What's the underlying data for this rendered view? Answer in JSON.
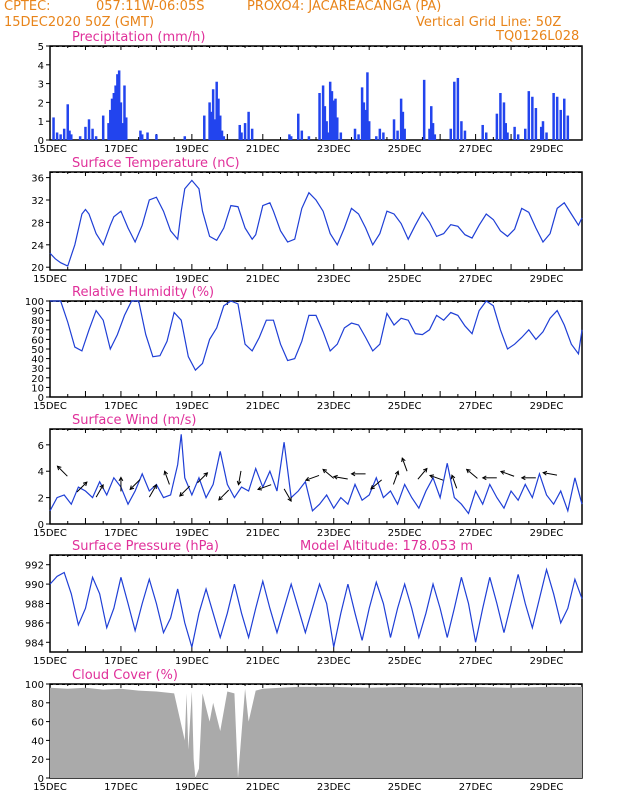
{
  "header": {
    "org": "CPTEC:",
    "coords": "057:11W-06:05S",
    "station": "PROXO4: JACAREACANGA (PA)",
    "datetime": "15DEC2020 50Z (GMT)",
    "grid_note": "Vertical Grid Line: 50Z",
    "model_code": "TQ0126L028"
  },
  "colors": {
    "header_text": "#e8841a",
    "title_text": "#e0309a",
    "line": "#1f3fd6",
    "bar": "#2244ee",
    "cloud": "#aaaaaa",
    "wind_arrow": "#000000"
  },
  "x_axis": {
    "labels": [
      "15DEC",
      "17DEC",
      "19DEC",
      "21DEC",
      "23DEC",
      "25DEC",
      "27DEC",
      "29DEC"
    ],
    "start_label": "15DEC",
    "days": 15
  },
  "chart_data": [
    {
      "type": "bar",
      "title": "Precipitation (mm/h)",
      "ylim": [
        0,
        5
      ],
      "yticks": [
        0,
        1,
        2,
        3,
        4,
        5
      ],
      "x_day_offsets": [
        0.1,
        0.2,
        0.3,
        0.4,
        0.5,
        0.55,
        0.6,
        0.85,
        1.0,
        1.1,
        1.2,
        1.3,
        1.5,
        1.65,
        1.7,
        1.75,
        1.8,
        1.85,
        1.9,
        1.95,
        2.0,
        2.05,
        2.1,
        2.15,
        2.55,
        2.6,
        2.75,
        3.0,
        3.8,
        4.35,
        4.5,
        4.55,
        4.6,
        4.65,
        4.7,
        4.75,
        4.8,
        4.85,
        4.9,
        5.35,
        5.4,
        5.5,
        5.6,
        5.7,
        6.75,
        6.8,
        7.0,
        7.1,
        7.3,
        7.6,
        7.7,
        7.75,
        7.8,
        7.85,
        7.9,
        7.95,
        8.0,
        8.05,
        8.1,
        8.2,
        8.6,
        8.7,
        8.8,
        8.85,
        8.9,
        8.95,
        9.0,
        9.2,
        9.3,
        9.4,
        9.7,
        9.8,
        9.9,
        9.95,
        10.0,
        10.55,
        10.7,
        10.75,
        10.8,
        10.85,
        11.3,
        11.4,
        11.5,
        11.6,
        11.7,
        12.2,
        12.3,
        12.6,
        12.7,
        12.8,
        12.85,
        12.9,
        13.1,
        13.2,
        13.4,
        13.5,
        13.6,
        13.7,
        13.85,
        13.9,
        14.0,
        14.2,
        14.3,
        14.4,
        14.5,
        14.6
      ],
      "values": [
        1.2,
        0.4,
        0.3,
        0.6,
        1.9,
        0.5,
        0.3,
        0.2,
        0.7,
        1.1,
        0.6,
        0.2,
        1.3,
        0.9,
        1.6,
        2.2,
        2.5,
        2.9,
        3.5,
        3.7,
        2.0,
        0.9,
        2.9,
        1.2,
        0.5,
        0.3,
        0.4,
        0.3,
        0.2,
        1.3,
        2.0,
        1.5,
        2.7,
        1.1,
        3.1,
        2.2,
        1.3,
        0.5,
        0.2,
        0.8,
        0.4,
        0.9,
        1.5,
        0.6,
        0.3,
        0.2,
        1.4,
        0.5,
        0.2,
        2.5,
        2.9,
        1.8,
        1.0,
        0.4,
        3.1,
        2.6,
        2.1,
        2.2,
        1.2,
        0.4,
        0.6,
        0.3,
        2.8,
        2.0,
        1.6,
        3.6,
        1.0,
        0.2,
        0.6,
        0.4,
        1.1,
        0.5,
        2.2,
        1.5,
        0.6,
        3.2,
        0.6,
        1.8,
        0.9,
        0.3,
        0.6,
        3.1,
        3.3,
        1.0,
        0.5,
        0.8,
        0.4,
        1.4,
        2.5,
        2.0,
        0.9,
        0.4,
        0.7,
        0.3,
        0.6,
        2.6,
        2.3,
        1.7,
        0.7,
        1.0,
        0.4,
        2.5,
        2.3,
        1.6,
        2.2,
        1.3
      ]
    },
    {
      "type": "line",
      "title": "Surface Temperature (nC)",
      "ylim": [
        19.5,
        37
      ],
      "yticks": [
        20,
        24,
        28,
        32,
        36
      ],
      "x_day_offsets": [
        0.0,
        0.15,
        0.3,
        0.5,
        0.7,
        0.9,
        1.0,
        1.1,
        1.3,
        1.5,
        1.7,
        1.8,
        2.0,
        2.2,
        2.4,
        2.6,
        2.8,
        3.0,
        3.2,
        3.4,
        3.6,
        3.7,
        3.8,
        4.0,
        4.2,
        4.3,
        4.5,
        4.7,
        4.9,
        5.1,
        5.3,
        5.5,
        5.7,
        5.8,
        6.0,
        6.2,
        6.3,
        6.5,
        6.7,
        6.9,
        7.1,
        7.3,
        7.5,
        7.7,
        7.9,
        8.1,
        8.3,
        8.5,
        8.7,
        8.9,
        9.1,
        9.3,
        9.5,
        9.7,
        9.9,
        10.1,
        10.3,
        10.5,
        10.7,
        10.9,
        11.1,
        11.3,
        11.5,
        11.7,
        11.9,
        12.1,
        12.3,
        12.5,
        12.7,
        12.9,
        13.1,
        13.3,
        13.5,
        13.7,
        13.9,
        14.1,
        14.3,
        14.5,
        14.7,
        14.9,
        15.0
      ],
      "values": [
        22.5,
        21.5,
        20.8,
        20.2,
        24.0,
        29.5,
        30.3,
        29.5,
        26.0,
        24.0,
        27.5,
        29.0,
        30.0,
        27.0,
        24.5,
        27.5,
        32.0,
        32.5,
        30.0,
        26.5,
        25.0,
        30.0,
        34.0,
        35.5,
        34.0,
        30.0,
        25.5,
        24.8,
        27.0,
        31.0,
        30.8,
        27.0,
        25.0,
        25.8,
        31.0,
        31.5,
        30.0,
        26.5,
        24.5,
        25.0,
        30.5,
        33.3,
        32.0,
        30.0,
        26.0,
        24.0,
        27.0,
        30.5,
        29.5,
        27.0,
        24.0,
        26.0,
        30.0,
        29.5,
        27.8,
        25.0,
        27.5,
        29.8,
        28.0,
        25.5,
        26.0,
        27.6,
        27.3,
        25.8,
        25.2,
        27.5,
        29.5,
        28.5,
        26.5,
        25.5,
        26.8,
        30.5,
        29.8,
        27.0,
        24.5,
        26.0,
        30.5,
        31.5,
        29.5,
        27.5,
        28.8
      ]
    },
    {
      "type": "line",
      "title": "Relative Humidity (%)",
      "ylim": [
        0,
        100
      ],
      "yticks": [
        0,
        10,
        20,
        30,
        40,
        50,
        60,
        70,
        80,
        90,
        100
      ],
      "x_day_offsets": [
        0.0,
        0.3,
        0.5,
        0.7,
        0.9,
        1.1,
        1.3,
        1.5,
        1.7,
        1.9,
        2.1,
        2.3,
        2.5,
        2.7,
        2.9,
        3.1,
        3.3,
        3.5,
        3.7,
        3.9,
        4.1,
        4.3,
        4.5,
        4.7,
        4.9,
        5.1,
        5.3,
        5.5,
        5.7,
        5.9,
        6.1,
        6.3,
        6.5,
        6.7,
        6.9,
        7.1,
        7.3,
        7.5,
        7.7,
        7.9,
        8.1,
        8.3,
        8.5,
        8.7,
        8.9,
        9.1,
        9.3,
        9.5,
        9.7,
        9.9,
        10.1,
        10.3,
        10.5,
        10.7,
        10.9,
        11.1,
        11.3,
        11.5,
        11.7,
        11.9,
        12.1,
        12.3,
        12.5,
        12.7,
        12.9,
        13.1,
        13.3,
        13.5,
        13.7,
        13.9,
        14.1,
        14.3,
        14.5,
        14.7,
        14.9,
        15.0
      ],
      "values": [
        100,
        100,
        78,
        52,
        48,
        70,
        90,
        80,
        50,
        65,
        85,
        100,
        100,
        65,
        42,
        43,
        58,
        88,
        80,
        42,
        28,
        35,
        60,
        72,
        95,
        100,
        97,
        55,
        48,
        62,
        80,
        80,
        55,
        38,
        40,
        58,
        85,
        85,
        68,
        48,
        55,
        72,
        77,
        75,
        62,
        48,
        55,
        87,
        75,
        82,
        80,
        66,
        65,
        70,
        85,
        80,
        88,
        85,
        74,
        66,
        90,
        100,
        95,
        70,
        50,
        55,
        62,
        70,
        60,
        68,
        82,
        90,
        75,
        55,
        45,
        70
      ]
    },
    {
      "type": "line",
      "title": "Surface Wind (m/s)",
      "ylim": [
        0,
        7.2
      ],
      "yticks": [
        0,
        2,
        4,
        6
      ],
      "x_day_offsets": [
        0.0,
        0.2,
        0.4,
        0.6,
        0.8,
        1.0,
        1.2,
        1.4,
        1.6,
        1.8,
        2.0,
        2.2,
        2.4,
        2.6,
        2.8,
        3.0,
        3.2,
        3.4,
        3.6,
        3.7,
        3.8,
        4.0,
        4.2,
        4.4,
        4.6,
        4.8,
        5.0,
        5.2,
        5.4,
        5.6,
        5.8,
        6.0,
        6.2,
        6.4,
        6.6,
        6.8,
        7.0,
        7.2,
        7.4,
        7.6,
        7.8,
        8.0,
        8.2,
        8.4,
        8.6,
        8.8,
        9.0,
        9.2,
        9.4,
        9.6,
        9.8,
        10.0,
        10.2,
        10.4,
        10.6,
        10.8,
        11.0,
        11.2,
        11.4,
        11.6,
        11.8,
        12.0,
        12.2,
        12.4,
        12.6,
        12.8,
        13.0,
        13.2,
        13.4,
        13.6,
        13.8,
        14.0,
        14.2,
        14.4,
        14.6,
        14.8,
        15.0
      ],
      "values": [
        1.0,
        2.0,
        2.2,
        1.5,
        2.8,
        2.5,
        2.0,
        3.2,
        2.2,
        3.5,
        2.8,
        1.5,
        2.5,
        3.8,
        2.5,
        3.0,
        2.0,
        2.2,
        4.5,
        6.8,
        3.5,
        2.2,
        3.5,
        2.0,
        3.0,
        5.5,
        3.0,
        2.0,
        2.8,
        2.5,
        4.2,
        2.8,
        4.0,
        2.5,
        6.2,
        2.0,
        2.5,
        3.2,
        1.0,
        1.5,
        2.2,
        1.2,
        2.0,
        1.5,
        3.0,
        1.8,
        2.2,
        3.5,
        2.0,
        2.5,
        1.5,
        3.0,
        2.0,
        1.2,
        2.5,
        3.5,
        2.0,
        4.6,
        2.0,
        1.5,
        0.8,
        2.5,
        1.5,
        3.0,
        2.0,
        1.2,
        2.5,
        1.8,
        3.0,
        2.0,
        3.8,
        2.2,
        1.5,
        2.5,
        1.0,
        3.5,
        1.5
      ],
      "wind_arrows": {
        "x_day_offsets": [
          0.35,
          0.9,
          1.4,
          2.0,
          2.4,
          2.9,
          3.3,
          3.8,
          4.3,
          4.9,
          5.35,
          6.05,
          6.7,
          7.4,
          7.85,
          8.2,
          8.7,
          9.2,
          9.75,
          10.0,
          10.5,
          10.9,
          11.4,
          11.9,
          12.4,
          12.9,
          13.5,
          14.1
        ],
        "speeds": [
          4.0,
          2.8,
          2.5,
          3.0,
          3.0,
          2.5,
          3.5,
          2.5,
          3.5,
          2.2,
          3.5,
          2.8,
          2.2,
          3.5,
          3.8,
          3.5,
          3.8,
          3.0,
          3.5,
          4.5,
          3.8,
          3.5,
          3.2,
          3.8,
          3.5,
          3.8,
          3.5,
          3.8
        ],
        "directions_deg": [
          135,
          45,
          60,
          90,
          225,
          60,
          110,
          225,
          45,
          225,
          260,
          200,
          300,
          200,
          140,
          170,
          180,
          220,
          70,
          110,
          50,
          160,
          110,
          140,
          180,
          160,
          180,
          170
        ]
      }
    },
    {
      "type": "line",
      "title": "Surface Pressure (hPa)",
      "annotation": "Model Altitude: 178.053 m",
      "ylim": [
        983,
        993
      ],
      "yticks": [
        984,
        986,
        988,
        990,
        992
      ],
      "x_day_offsets": [
        0.0,
        0.2,
        0.4,
        0.6,
        0.8,
        1.0,
        1.2,
        1.4,
        1.6,
        1.8,
        2.0,
        2.2,
        2.4,
        2.6,
        2.8,
        3.0,
        3.2,
        3.4,
        3.6,
        3.8,
        4.0,
        4.2,
        4.4,
        4.6,
        4.8,
        5.0,
        5.2,
        5.4,
        5.6,
        5.8,
        6.0,
        6.2,
        6.4,
        6.6,
        6.8,
        7.0,
        7.2,
        7.4,
        7.6,
        7.8,
        8.0,
        8.2,
        8.4,
        8.6,
        8.8,
        9.0,
        9.2,
        9.4,
        9.6,
        9.8,
        10.0,
        10.2,
        10.4,
        10.6,
        10.8,
        11.0,
        11.2,
        11.4,
        11.6,
        11.8,
        12.0,
        12.2,
        12.4,
        12.6,
        12.8,
        13.0,
        13.2,
        13.4,
        13.6,
        13.8,
        14.0,
        14.2,
        14.4,
        14.6,
        14.8,
        15.0
      ],
      "values": [
        990.0,
        990.8,
        991.2,
        989.0,
        985.8,
        987.5,
        990.7,
        989.0,
        985.5,
        987.5,
        990.7,
        988.0,
        985.2,
        988.0,
        990.5,
        988.0,
        985.0,
        986.5,
        989.5,
        986.0,
        983.5,
        987.0,
        989.5,
        987.0,
        984.5,
        987.0,
        990.0,
        987.0,
        984.5,
        987.5,
        990.3,
        987.5,
        985.0,
        987.5,
        990.0,
        987.5,
        985.0,
        987.5,
        990.0,
        988.0,
        983.5,
        987.0,
        990.0,
        987.0,
        984.2,
        987.5,
        990.2,
        988.0,
        984.5,
        987.5,
        990.0,
        987.5,
        984.5,
        987.0,
        990.0,
        987.5,
        984.5,
        987.5,
        990.7,
        988.0,
        984.0,
        987.5,
        990.7,
        988.0,
        985.0,
        988.0,
        991.0,
        988.0,
        985.5,
        988.5,
        991.5,
        989.0,
        986.0,
        987.5,
        990.5,
        988.5
      ]
    },
    {
      "type": "area",
      "title": "Cloud Cover (%)",
      "ylim": [
        0,
        100
      ],
      "yticks": [
        0,
        20,
        40,
        60,
        80,
        100
      ],
      "x_day_offsets": [
        0.0,
        0.5,
        1.0,
        1.5,
        2.0,
        2.5,
        3.0,
        3.5,
        3.8,
        3.85,
        3.9,
        4.0,
        4.05,
        4.1,
        4.2,
        4.3,
        4.5,
        4.6,
        4.8,
        5.0,
        5.2,
        5.3,
        5.5,
        5.6,
        5.8,
        6.0,
        6.5,
        7.0,
        8.0,
        9.0,
        10.0,
        11.0,
        12.0,
        13.0,
        14.0,
        15.0
      ],
      "values": [
        96,
        95,
        96,
        94,
        95,
        93,
        92,
        90,
        40,
        90,
        30,
        92,
        20,
        0,
        10,
        90,
        60,
        80,
        50,
        92,
        90,
        0,
        95,
        60,
        93,
        95,
        96,
        97,
        97,
        96,
        97,
        96,
        97,
        96,
        97,
        97
      ]
    }
  ]
}
